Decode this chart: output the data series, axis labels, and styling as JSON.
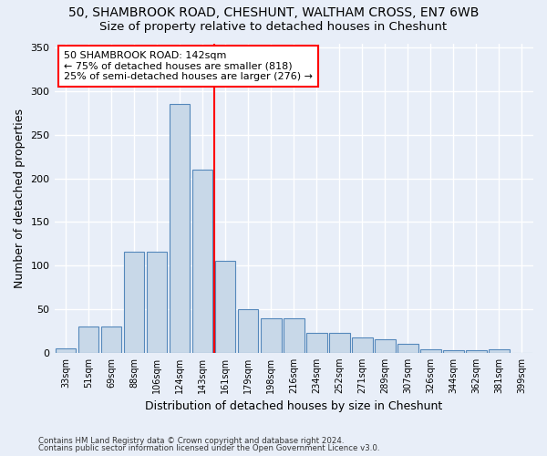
{
  "title_line1": "50, SHAMBROOK ROAD, CHESHUNT, WALTHAM CROSS, EN7 6WB",
  "title_line2": "Size of property relative to detached houses in Cheshunt",
  "xlabel": "Distribution of detached houses by size in Cheshunt",
  "ylabel": "Number of detached properties",
  "footer_line1": "Contains HM Land Registry data © Crown copyright and database right 2024.",
  "footer_line2": "Contains public sector information licensed under the Open Government Licence v3.0.",
  "categories": [
    "33sqm",
    "51sqm",
    "69sqm",
    "88sqm",
    "106sqm",
    "124sqm",
    "143sqm",
    "161sqm",
    "179sqm",
    "198sqm",
    "216sqm",
    "234sqm",
    "252sqm",
    "271sqm",
    "289sqm",
    "307sqm",
    "326sqm",
    "344sqm",
    "362sqm",
    "381sqm",
    "399sqm"
  ],
  "values": [
    5,
    30,
    30,
    116,
    116,
    285,
    210,
    105,
    50,
    40,
    40,
    23,
    23,
    18,
    15,
    10,
    4,
    3,
    3,
    4,
    0
  ],
  "bar_color": "#c8d8e8",
  "bar_edge_color": "#5588bb",
  "vline_x_index": 6.5,
  "annotation_text": "50 SHAMBROOK ROAD: 142sqm\n← 75% of detached houses are smaller (818)\n25% of semi-detached houses are larger (276) →",
  "annotation_box_color": "white",
  "annotation_box_edge": "red",
  "vline_color": "red",
  "ylim": [
    0,
    355
  ],
  "yticks": [
    0,
    50,
    100,
    150,
    200,
    250,
    300,
    350
  ],
  "background_color": "#e8eef8",
  "grid_color": "white",
  "title_fontsize": 10,
  "subtitle_fontsize": 9.5,
  "label_fontsize": 9,
  "tick_fontsize": 8,
  "xlabel_fontsize": 9
}
